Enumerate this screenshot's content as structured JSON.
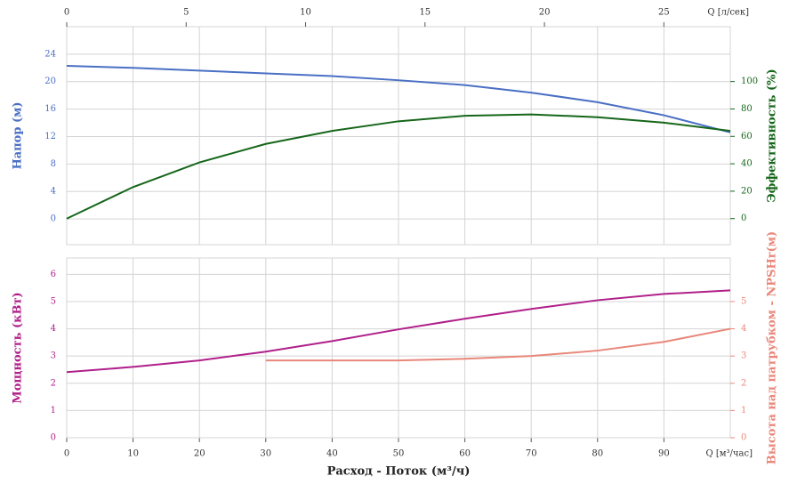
{
  "chart_data": [
    {
      "type": "line",
      "x": [
        0,
        10,
        20,
        30,
        40,
        50,
        60,
        70,
        80,
        90,
        100
      ],
      "xlim": [
        0,
        100
      ],
      "xticks": [
        0,
        10,
        20,
        30,
        40,
        50,
        60,
        70,
        80,
        90
      ],
      "x2label": "Q [л/сек]",
      "x2lim": [
        0,
        27.78
      ],
      "x2ticks": [
        0,
        5,
        10,
        15,
        20,
        25
      ],
      "ylabel": "Напор (м)",
      "ylim": [
        -3.75,
        28
      ],
      "yticks": [
        0,
        4,
        8,
        12,
        16,
        20,
        24
      ],
      "y2label": "Эффективность (%)",
      "y2lim": [
        -19,
        140
      ],
      "y2ticks": [
        0,
        20,
        40,
        60,
        80,
        100
      ],
      "grid": true,
      "series": [
        {
          "name": "Напор (м)",
          "color": "#4a6fc4",
          "axis": "y",
          "values": [
            22.3,
            22.0,
            21.6,
            21.2,
            20.8,
            20.2,
            19.5,
            18.4,
            17.0,
            15.1,
            12.6
          ]
        },
        {
          "name": "Эффективность (%)",
          "color": "#16661a",
          "axis": "y2",
          "values": [
            0,
            23,
            41,
            54.5,
            64,
            71,
            75,
            76,
            74,
            70,
            64
          ]
        }
      ]
    },
    {
      "type": "line",
      "x": [
        0,
        10,
        20,
        30,
        40,
        50,
        60,
        70,
        80,
        90,
        100
      ],
      "xlim": [
        0,
        100
      ],
      "xticks": [
        0,
        10,
        20,
        30,
        40,
        50,
        60,
        70,
        80,
        90
      ],
      "xunit": "Q [м³/час]",
      "xlabel": "Расход - Поток (м³/ч)",
      "ylabel": "Мощность (кВт)",
      "ylim": [
        0,
        6.6
      ],
      "yticks": [
        0,
        1,
        2,
        3,
        4,
        5,
        6
      ],
      "y2label": "Высота над патрубком - NPSHr(м)",
      "y2lim": [
        0,
        6.6
      ],
      "y2ticks": [
        0,
        1,
        2,
        3,
        4,
        5
      ],
      "grid": true,
      "series": [
        {
          "name": "Мощность (кВт)",
          "color": "#b0208a",
          "axis": "y",
          "values": [
            2.41,
            2.6,
            2.84,
            3.16,
            3.55,
            3.98,
            4.37,
            4.73,
            5.05,
            5.28,
            5.41
          ]
        },
        {
          "name": "Высота над патрубком - NPSHr(м)",
          "color": "#e8877a",
          "axis": "y2",
          "values": [
            null,
            null,
            null,
            2.84,
            2.84,
            2.84,
            2.9,
            3.0,
            3.2,
            3.52,
            4.0
          ]
        }
      ]
    }
  ]
}
